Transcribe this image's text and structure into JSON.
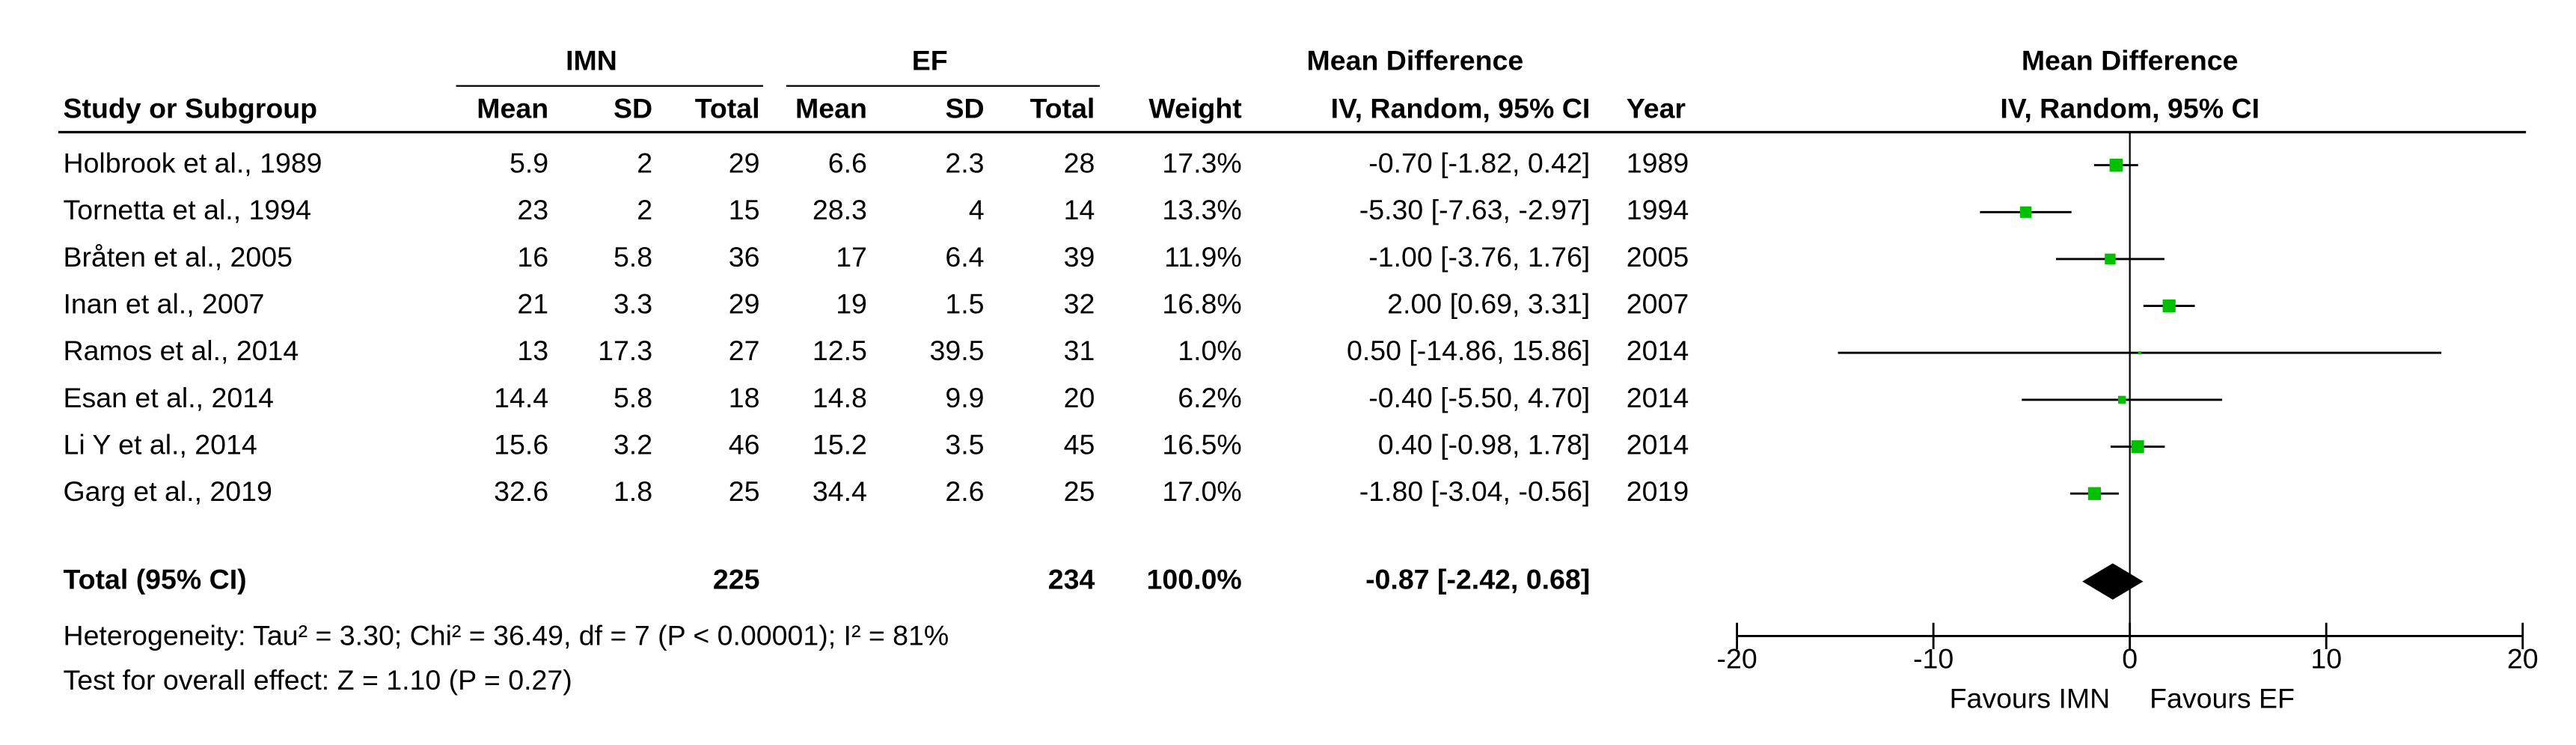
{
  "chart_data": {
    "type": "forest",
    "group_headers": {
      "imn": "IMN",
      "ef": "EF",
      "md": "Mean Difference",
      "plot": "Mean Difference"
    },
    "columns": [
      "Study or Subgroup",
      "Mean",
      "SD",
      "Total",
      "Mean",
      "SD",
      "Total",
      "Weight",
      "IV, Random, 95% CI",
      "Year"
    ],
    "plot_subtitle": "IV, Random, 95% CI",
    "studies": [
      {
        "study": "Holbrook et al., 1989",
        "imn": {
          "mean": 5.9,
          "sd": 2,
          "total": 29
        },
        "ef": {
          "mean": 6.6,
          "sd": 2.3,
          "total": 28
        },
        "weight": {
          "value": 17.3,
          "label": "17.3%"
        },
        "md": -0.7,
        "ci": [
          -1.82,
          0.42
        ],
        "md_label": "-0.70 [-1.82, 0.42]",
        "year": 1989
      },
      {
        "study": "Tornetta et al., 1994",
        "imn": {
          "mean": 23,
          "sd": 2,
          "total": 15
        },
        "ef": {
          "mean": 28.3,
          "sd": 4,
          "total": 14
        },
        "weight": {
          "value": 13.3,
          "label": "13.3%"
        },
        "md": -5.3,
        "ci": [
          -7.63,
          -2.97
        ],
        "md_label": "-5.30 [-7.63, -2.97]",
        "year": 1994
      },
      {
        "study": "Bråten et al., 2005",
        "imn": {
          "mean": 16,
          "sd": 5.8,
          "total": 36
        },
        "ef": {
          "mean": 17,
          "sd": 6.4,
          "total": 39
        },
        "weight": {
          "value": 11.9,
          "label": "11.9%"
        },
        "md": -1.0,
        "ci": [
          -3.76,
          1.76
        ],
        "md_label": "-1.00 [-3.76, 1.76]",
        "year": 2005
      },
      {
        "study": "Inan et al., 2007",
        "imn": {
          "mean": 21,
          "sd": 3.3,
          "total": 29
        },
        "ef": {
          "mean": 19,
          "sd": 1.5,
          "total": 32
        },
        "weight": {
          "value": 16.8,
          "label": "16.8%"
        },
        "md": 2.0,
        "ci": [
          0.69,
          3.31
        ],
        "md_label": "2.00 [0.69, 3.31]",
        "year": 2007
      },
      {
        "study": "Ramos et al., 2014",
        "imn": {
          "mean": 13,
          "sd": 17.3,
          "total": 27
        },
        "ef": {
          "mean": 12.5,
          "sd": 39.5,
          "total": 31
        },
        "weight": {
          "value": 1.0,
          "label": "1.0%"
        },
        "md": 0.5,
        "ci": [
          -14.86,
          15.86
        ],
        "md_label": "0.50 [-14.86, 15.86]",
        "year": 2014
      },
      {
        "study": "Esan et al., 2014",
        "imn": {
          "mean": 14.4,
          "sd": 5.8,
          "total": 18
        },
        "ef": {
          "mean": 14.8,
          "sd": 9.9,
          "total": 20
        },
        "weight": {
          "value": 6.2,
          "label": "6.2%"
        },
        "md": -0.4,
        "ci": [
          -5.5,
          4.7
        ],
        "md_label": "-0.40 [-5.50, 4.70]",
        "year": 2014
      },
      {
        "study": "Li Y et al., 2014",
        "imn": {
          "mean": 15.6,
          "sd": 3.2,
          "total": 46
        },
        "ef": {
          "mean": 15.2,
          "sd": 3.5,
          "total": 45
        },
        "weight": {
          "value": 16.5,
          "label": "16.5%"
        },
        "md": 0.4,
        "ci": [
          -0.98,
          1.78
        ],
        "md_label": "0.40 [-0.98, 1.78]",
        "year": 2014
      },
      {
        "study": "Garg et al., 2019",
        "imn": {
          "mean": 32.6,
          "sd": 1.8,
          "total": 25
        },
        "ef": {
          "mean": 34.4,
          "sd": 2.6,
          "total": 25
        },
        "weight": {
          "value": 17.0,
          "label": "17.0%"
        },
        "md": -1.8,
        "ci": [
          -3.04,
          -0.56
        ],
        "md_label": "-1.80 [-3.04, -0.56]",
        "year": 2019
      }
    ],
    "total": {
      "label": "Total (95% CI)",
      "imn_total": 225,
      "ef_total": 234,
      "weight": {
        "value": 100,
        "label": "100.0%"
      },
      "md": -0.87,
      "ci": [
        -2.42,
        0.68
      ],
      "md_label": "-0.87 [-2.42, 0.68]"
    },
    "heterogeneity": "Heterogeneity: Tau² = 3.30; Chi² = 36.49, df = 7 (P < 0.00001); I² = 81%",
    "overall_effect": "Test for overall effect: Z = 1.10 (P = 0.27)",
    "xlim": [
      -20,
      20
    ],
    "xticks": [
      -20,
      -10,
      0,
      10,
      20
    ],
    "favours": [
      "Favours IMN",
      "Favours EF"
    ],
    "square_color": "#00c000",
    "diamond_color": "#000000"
  }
}
